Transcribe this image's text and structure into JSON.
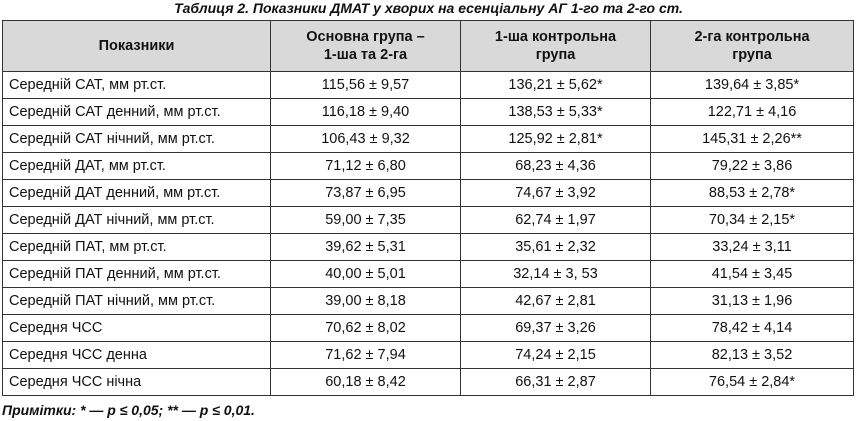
{
  "caption": "Таблиця 2. Показники ДМАТ у хворих на есенціальну АГ 1-го та 2-го ст.",
  "table": {
    "header": [
      [
        "Показники"
      ],
      [
        "Основна група –",
        "1-ша та 2-га"
      ],
      [
        "1-ша контрольна",
        "група"
      ],
      [
        "2-га контрольна",
        "група"
      ]
    ],
    "rows": [
      [
        "Середній САТ, мм рт.ст.",
        "115,56 ± 9,57",
        "136,21 ± 5,62*",
        "139,64 ± 3,85*"
      ],
      [
        "Середній САТ денний, мм рт.ст.",
        "116,18 ± 9,40",
        "138,53 ± 5,33*",
        "122,71 ± 4,16"
      ],
      [
        "Середній САТ нічний, мм рт.ст.",
        "106,43 ± 9,32",
        "125,92 ± 2,81*",
        "145,31 ± 2,26**"
      ],
      [
        "Середній ДАТ, мм рт.ст.",
        "71,12 ± 6,80",
        "68,23 ± 4,36",
        "79,22 ± 3,86"
      ],
      [
        "Середній ДАТ денний, мм рт.ст.",
        "73,87 ± 6,95",
        "74,67 ± 3,92",
        "88,53 ± 2,78*"
      ],
      [
        "Середній ДАТ нічний, мм рт.ст.",
        "59,00 ± 7,35",
        "62,74 ± 1,97",
        "70,34 ± 2,15*"
      ],
      [
        "Середній ПАТ, мм рт.ст.",
        "39,62 ± 5,31",
        "35,61 ± 2,32",
        "33,24 ± 3,11"
      ],
      [
        "Середній ПАТ денний, мм рт.ст.",
        "40,00 ± 5,01",
        "32,14 ± 3, 53",
        "41,54 ± 3,45"
      ],
      [
        "Середній ПАТ нічний, мм рт.ст.",
        "39,00 ± 8,18",
        "42,67 ± 2,81",
        "31,13 ± 1,96"
      ],
      [
        "Середня ЧСС",
        "70,62 ± 8,02",
        "69,37 ± 3,26",
        "78,42 ± 4,14"
      ],
      [
        "Середня ЧСС денна",
        "71,62 ± 7,94",
        "74,24 ± 2,15",
        "82,13 ± 3,52"
      ],
      [
        "Середня ЧСС нічна",
        "60,18 ± 8,42",
        "66,31 ± 2,87",
        "76,54 ± 2,84*"
      ]
    ]
  },
  "note": "Примітки: * — p ≤ 0,05; ** — p ≤ 0,01."
}
